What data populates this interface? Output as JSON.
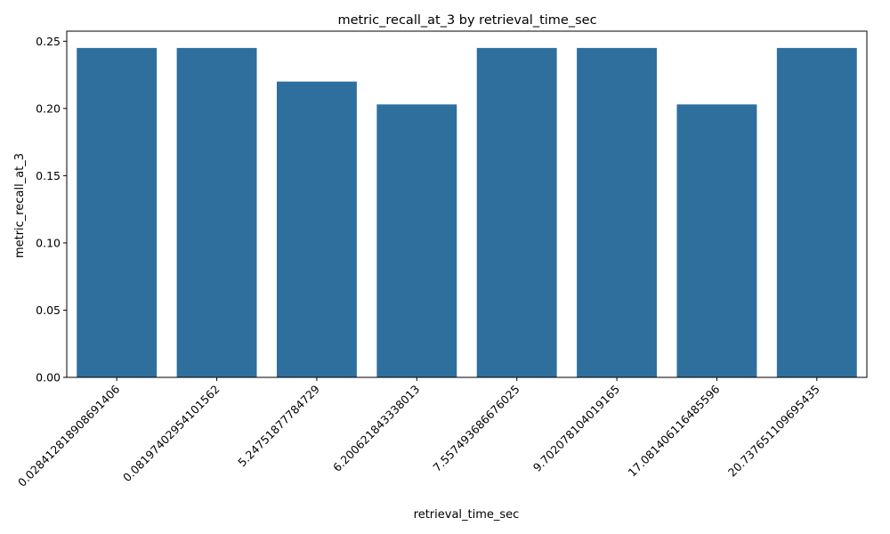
{
  "chart_data": {
    "type": "bar",
    "title": "metric_recall_at_3 by retrieval_time_sec",
    "xlabel": "retrieval_time_sec",
    "ylabel": "metric_recall_at_3",
    "categories": [
      "0.028412818908691406",
      "0.08197402954101562",
      "5.24751877784729",
      "6.200621843338013",
      "7.557493686676025",
      "9.702078104019165",
      "17.081406116485596",
      "20.737651109695435"
    ],
    "values": [
      0.245,
      0.245,
      0.22,
      0.203,
      0.245,
      0.245,
      0.203,
      0.245
    ],
    "ylim": [
      0,
      0.2575
    ],
    "yticks": [
      "0.00",
      "0.05",
      "0.10",
      "0.15",
      "0.20",
      "0.25"
    ],
    "bar_color": "#2e6f9e",
    "grid": false,
    "legend": "none"
  }
}
